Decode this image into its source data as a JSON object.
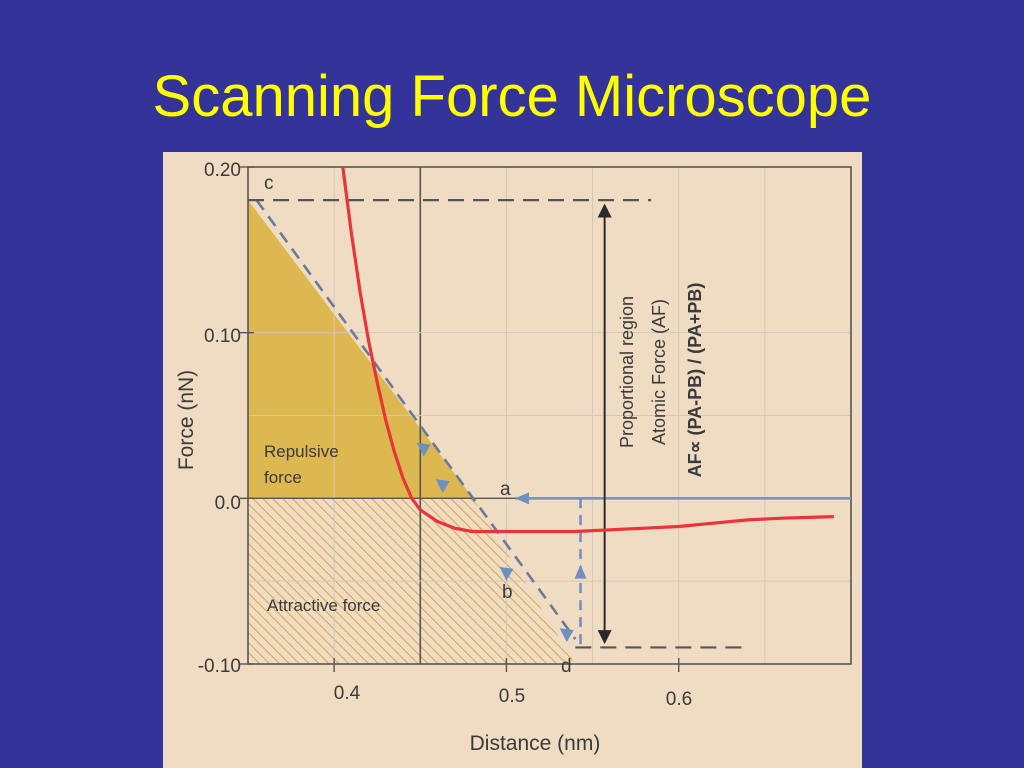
{
  "slide": {
    "title": "Scanning Force Microscope"
  },
  "colors": {
    "background": "#333399",
    "title": "#ffff00",
    "paper": "#f0dcc2",
    "curve": "#e8343a",
    "arrow": "#6f8fbf",
    "repulsive_fill": "#d9b23c"
  },
  "chart_data": {
    "type": "line",
    "xlabel": "Distance (nm)",
    "ylabel": "Force (nN)",
    "xlim": [
      0.35,
      0.7
    ],
    "ylim": [
      -0.1,
      0.2
    ],
    "x_ticks": [
      "0.4",
      "0.5",
      "0.6"
    ],
    "y_ticks": [
      "0.20",
      "0.10",
      "0.0",
      "-0.10"
    ],
    "grid": true,
    "series": [
      {
        "x": [
          0.405,
          0.41,
          0.415,
          0.42,
          0.425,
          0.43,
          0.435,
          0.44,
          0.445,
          0.45,
          0.46,
          0.47,
          0.48,
          0.49,
          0.5,
          0.52,
          0.54,
          0.56,
          0.58,
          0.6,
          0.62,
          0.64,
          0.66,
          0.69
        ],
        "y": [
          0.2,
          0.16,
          0.125,
          0.095,
          0.07,
          0.047,
          0.028,
          0.012,
          0.0,
          -0.007,
          -0.014,
          -0.018,
          -0.02,
          -0.02,
          -0.02,
          -0.02,
          -0.02,
          -0.019,
          -0.018,
          -0.017,
          -0.015,
          -0.013,
          -0.012,
          -0.011
        ]
      }
    ],
    "dashed_line": {
      "x": [
        0.355,
        0.54
      ],
      "y": [
        0.18,
        -0.085
      ]
    },
    "point_labels": {
      "a": "a",
      "b": "b",
      "c": "c",
      "d": "d"
    },
    "region_labels": {
      "repulsive_line1": "Repulsive",
      "repulsive_line2": "force",
      "attractive": "Attractive force"
    },
    "annotation": {
      "line1": "Proportional region",
      "line2": "Atomic Force (AF)",
      "line3": "AF∝ (PA-PB) / (PA+PB)"
    }
  }
}
